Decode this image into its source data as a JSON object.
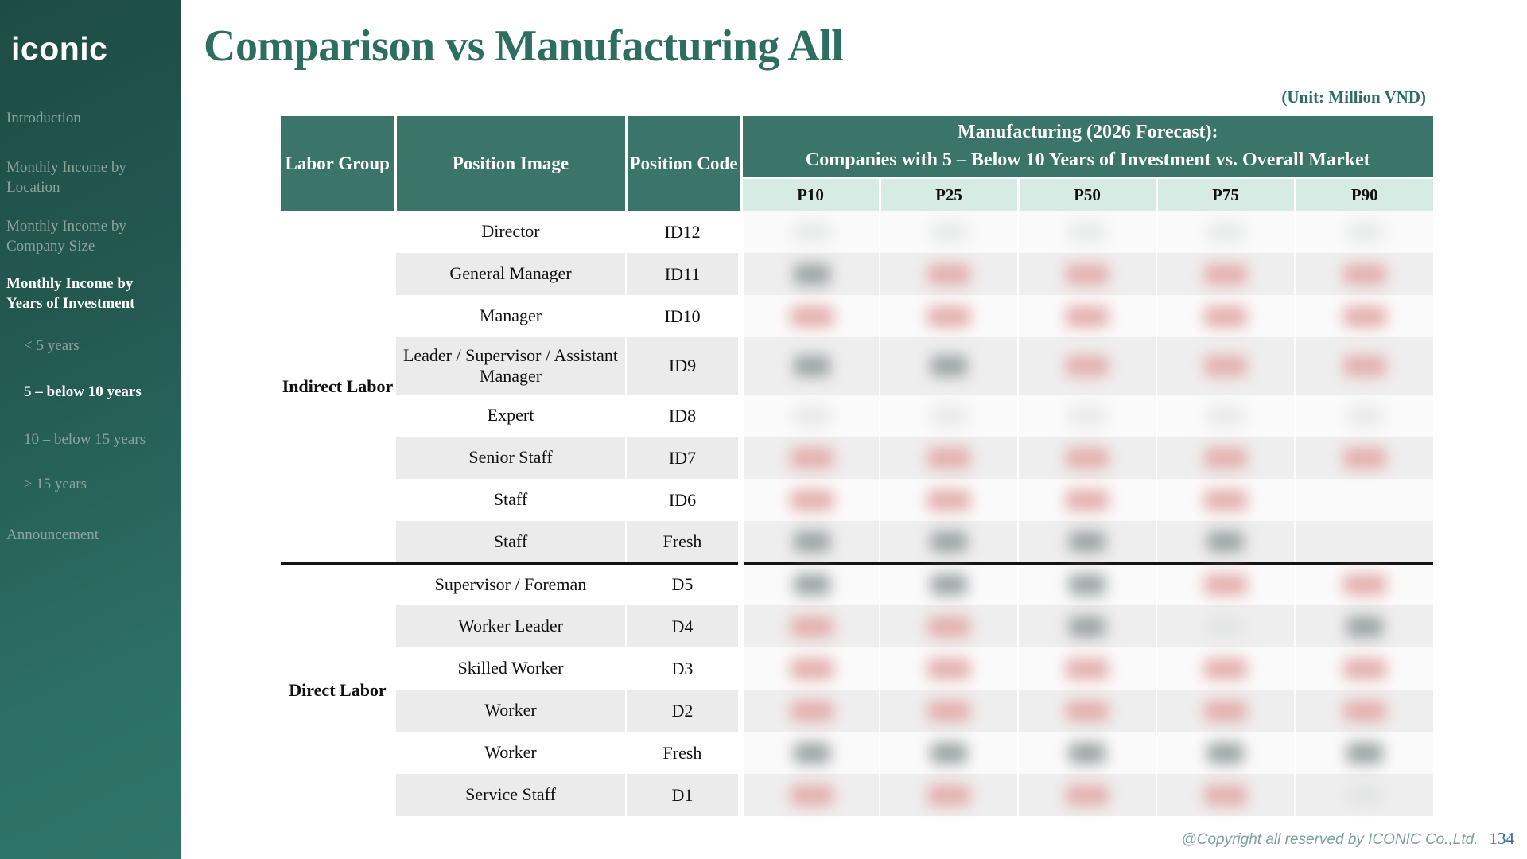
{
  "sidebar": {
    "logo": "iconic",
    "items": [
      {
        "label": "Introduction",
        "bold": false,
        "indent": false
      },
      {
        "label": "Monthly Income by Location",
        "bold": false,
        "indent": false
      },
      {
        "label": "Monthly Income by Company Size",
        "bold": false,
        "indent": false
      },
      {
        "label": "Monthly Income by Years of Investment",
        "bold": true,
        "indent": false
      },
      {
        "label": "< 5 years",
        "bold": false,
        "indent": true
      },
      {
        "label": "5 – below 10 years",
        "bold": true,
        "indent": true
      },
      {
        "label": "10 – below 15 years",
        "bold": false,
        "indent": true
      },
      {
        "label": "≥ 15 years",
        "bold": false,
        "indent": true
      },
      {
        "label": "Announcement",
        "bold": false,
        "indent": false
      }
    ]
  },
  "header": {
    "title": "Comparison vs Manufacturing All",
    "unit": "(Unit: Million VND)"
  },
  "table": {
    "columns": {
      "labor_group": "Labor Group",
      "position_image": "Position Image",
      "position_code": "Position Code"
    },
    "span_header": {
      "line1": "Manufacturing (2026 Forecast):",
      "line2": "Companies with 5 – Below 10 Years of Investment vs. Overall Market"
    },
    "percentiles": [
      "P10",
      "P25",
      "P50",
      "P75",
      "P90"
    ],
    "groups": {
      "indirect": {
        "label": "Indirect Labor",
        "rows": 8
      },
      "direct": {
        "label": "Direct Labor",
        "rows": 6
      }
    },
    "redaction_colors": {
      "p": "#e3adab",
      "g": "#99a2a2",
      "f": "#d9dedd"
    },
    "rows": [
      {
        "group": "indirect",
        "position": "Director",
        "code": "ID12",
        "marks": [
          "f",
          "f",
          "f",
          "f",
          "f"
        ]
      },
      {
        "position": "General Manager",
        "code": "ID11",
        "marks": [
          "g",
          "p",
          "p",
          "p",
          "p"
        ]
      },
      {
        "position": "Manager",
        "code": "ID10",
        "marks": [
          "p",
          "p",
          "p",
          "p",
          "p"
        ]
      },
      {
        "position": "Leader / Supervisor / Assistant Manager",
        "code": "ID9",
        "tall": true,
        "marks": [
          "g",
          "g",
          "p",
          "p",
          "p"
        ]
      },
      {
        "position": "Expert",
        "code": "ID8",
        "marks": [
          "f",
          "f",
          "f",
          "f",
          "f"
        ]
      },
      {
        "position": "Senior Staff",
        "code": "ID7",
        "marks": [
          "p",
          "p",
          "p",
          "p",
          "p"
        ]
      },
      {
        "position": "Staff",
        "code": "ID6",
        "marks": [
          "p",
          "p",
          "p",
          "p",
          "-"
        ]
      },
      {
        "position": "Staff",
        "code": "Fresh",
        "marks": [
          "g",
          "g",
          "g",
          "g",
          "-"
        ]
      },
      {
        "group": "direct",
        "position": "Supervisor / Foreman",
        "code": "D5",
        "divider": true,
        "marks": [
          "g",
          "g",
          "g",
          "p",
          "p"
        ]
      },
      {
        "position": "Worker Leader",
        "code": "D4",
        "marks": [
          "p",
          "p",
          "g",
          "f",
          "g"
        ]
      },
      {
        "position": "Skilled Worker",
        "code": "D3",
        "marks": [
          "p",
          "p",
          "p",
          "p",
          "p"
        ]
      },
      {
        "position": "Worker",
        "code": "D2",
        "marks": [
          "p",
          "p",
          "p",
          "p",
          "p"
        ]
      },
      {
        "position": "Worker",
        "code": "Fresh",
        "marks": [
          "g",
          "g",
          "g",
          "g",
          "g"
        ]
      },
      {
        "position": "Service Staff",
        "code": "D1",
        "marks": [
          "p",
          "p",
          "p",
          "p",
          "f"
        ]
      }
    ]
  },
  "footer": {
    "copyright": "@Copyright all reserved by ICONIC Co.,Ltd.",
    "page": "134"
  }
}
